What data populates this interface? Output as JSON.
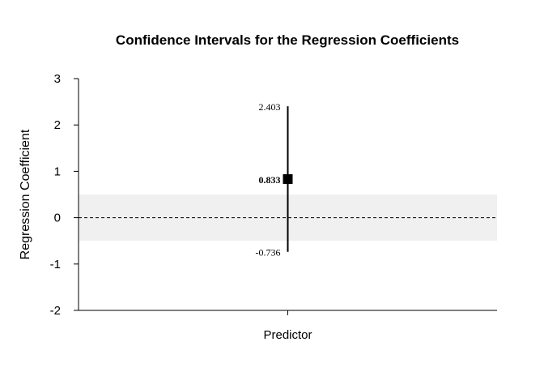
{
  "chart_data": {
    "type": "scatter",
    "title": "Confidence Intervals for the Regression Coefficients",
    "ylabel": "Regression Coefficient",
    "xlabel": "",
    "categories": [
      "Predictor"
    ],
    "ylim": [
      -2,
      3
    ],
    "yticks": [
      -2,
      -1,
      0,
      1,
      2,
      3
    ],
    "reference_line": 0,
    "null_band": [
      -0.5,
      0.5
    ],
    "points": [
      {
        "category": "Predictor",
        "estimate": 0.833,
        "lower": -0.736,
        "upper": 2.403,
        "estimate_label": "0.833",
        "lower_label": "-0.736",
        "upper_label": "2.403"
      }
    ],
    "colors": {
      "band": "#f0f0f0",
      "marks": "#000000"
    }
  }
}
